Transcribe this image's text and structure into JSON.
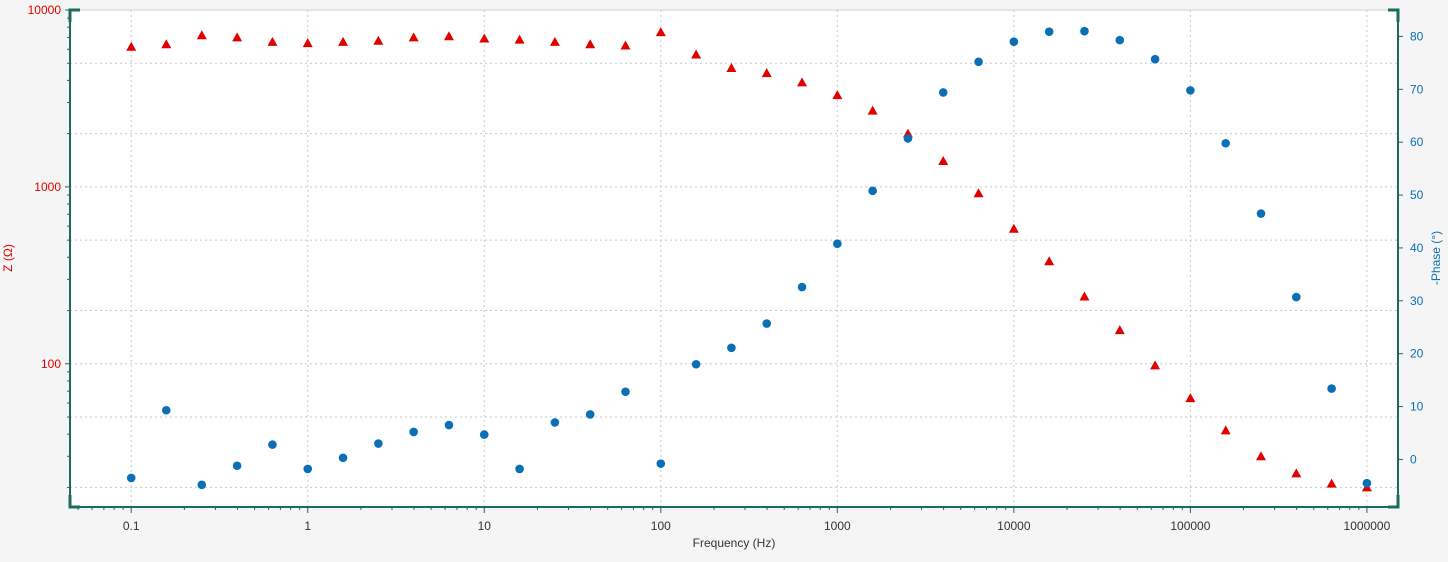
{
  "colors": {
    "z": "#e00000",
    "phase": "#0a6fb5",
    "axis_frame": "#1d6b5e",
    "grid": "#c8c8c8",
    "text": "#333333"
  },
  "chart_data": {
    "type": "scatter",
    "xlabel": "Frequency (Hz)",
    "ylabel_left": "Z (Ω)",
    "ylabel_right": "-Phase (°)",
    "x_scale": "log",
    "y_left_scale": "log",
    "xlim": [
      0.045,
      1500000
    ],
    "ylim_left": [
      15.5,
      10000
    ],
    "ylim_right": [
      -9,
      85
    ],
    "x_ticks": [
      "0.1",
      "1",
      "10",
      "100",
      "1000",
      "10000",
      "100000",
      "1000000"
    ],
    "y_left_ticks": [
      "100",
      "1000",
      "10000"
    ],
    "y_right_ticks": [
      "0",
      "10",
      "20",
      "30",
      "40",
      "50",
      "60",
      "70",
      "80"
    ],
    "grid": true,
    "series": [
      {
        "marker": "triangle",
        "axis": "left",
        "x": [
          0.1,
          0.158,
          0.251,
          0.398,
          0.631,
          1,
          1.585,
          2.512,
          3.981,
          6.31,
          10,
          15.85,
          25.12,
          39.81,
          63.1,
          100,
          158.5,
          251.2,
          398.1,
          631,
          1000,
          1585,
          2512,
          3981,
          6310,
          10000,
          15850,
          25120,
          39810,
          63100,
          100000,
          158500,
          251200,
          398100,
          631000,
          1000000
        ],
        "values": [
          6200,
          6400,
          7200,
          7000,
          6600,
          6500,
          6600,
          6700,
          7000,
          7100,
          6900,
          6800,
          6600,
          6400,
          6300,
          7500,
          5600,
          4700,
          4400,
          3900,
          3300,
          2700,
          2000,
          1400,
          920,
          580,
          380,
          240,
          155,
          98,
          64,
          42,
          30,
          24,
          21,
          20
        ]
      },
      {
        "marker": "circle",
        "axis": "right",
        "x": [
          0.1,
          0.158,
          0.251,
          0.398,
          0.631,
          1,
          1.585,
          2.512,
          3.981,
          6.31,
          10,
          15.85,
          25.12,
          39.81,
          63.1,
          100,
          158.5,
          251.2,
          398.1,
          631,
          1000,
          1585,
          2512,
          3981,
          6310,
          10000,
          15850,
          25120,
          39810,
          63100,
          100000,
          158500,
          251200,
          398100,
          631000,
          1000000
        ],
        "values": [
          -3.5,
          9.3,
          -4.8,
          -1.2,
          2.8,
          -1.8,
          0.3,
          3,
          5.2,
          6.5,
          4.7,
          -1.8,
          7,
          8.5,
          12.8,
          -0.8,
          18,
          21.1,
          25.7,
          32.6,
          40.8,
          50.8,
          60.7,
          69.4,
          75.2,
          79,
          80.9,
          81,
          79.3,
          75.7,
          69.8,
          59.8,
          46.5,
          30.7,
          13.4,
          -4.5
        ]
      }
    ]
  }
}
